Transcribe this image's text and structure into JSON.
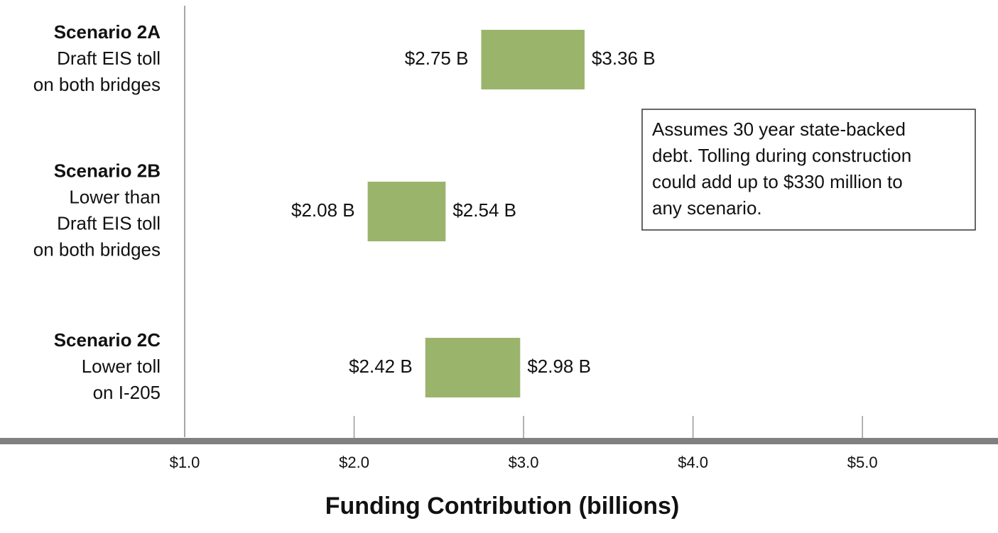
{
  "chart_data": {
    "type": "range_bar",
    "x_label": "Funding Contribution (billions)",
    "categories": [
      "Scenario 2A",
      "Scenario 2B",
      "Scenario 2C"
    ],
    "descriptions": [
      [
        "Draft EIS toll",
        "on both bridges"
      ],
      [
        "Lower than",
        "Draft EIS toll",
        "on both bridges"
      ],
      [
        "Lower toll",
        "on I-205"
      ]
    ],
    "low": [
      2.75,
      2.08,
      2.42
    ],
    "high": [
      3.36,
      2.54,
      2.98
    ],
    "low_labels": [
      "$2.75 B",
      "$2.08 B",
      "$2.42 B"
    ],
    "high_labels": [
      "$3.36 B",
      "$2.54 B",
      "$2.98 B"
    ],
    "color": "#9bb46c",
    "xlim": [
      1,
      5.8
    ],
    "xticks": [
      {
        "value": 1,
        "label": "$1.0"
      },
      {
        "value": 2,
        "label": "$2.0"
      },
      {
        "value": 3,
        "label": "$3.0"
      },
      {
        "value": 4,
        "label": "$4.0"
      },
      {
        "value": 5,
        "label": "$5.0"
      }
    ],
    "annotation": [
      "Assumes 30 year state-backed",
      "debt. Tolling during construction",
      "could add up to $330 million to",
      "any scenario."
    ]
  }
}
